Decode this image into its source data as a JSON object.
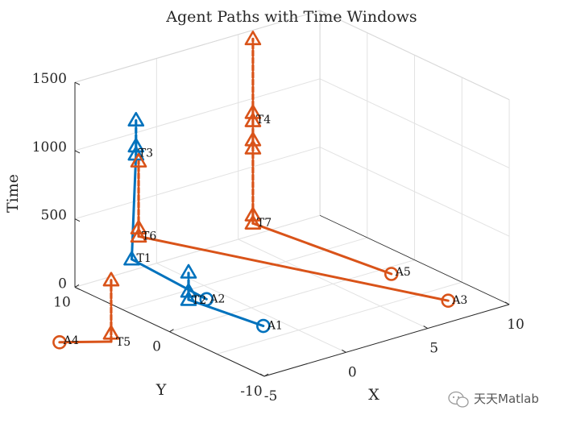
{
  "chart_data": {
    "type": "scatter3d",
    "title": "Agent Paths with Time Windows",
    "xlabel": "X",
    "ylabel": "Y",
    "zlabel": "Time",
    "xlim": [
      -5,
      10
    ],
    "ylim": [
      -10,
      10
    ],
    "zlim": [
      0,
      1500
    ],
    "xticks": [
      "-5",
      "0",
      "5",
      "10"
    ],
    "yticks": [
      "-10",
      "0",
      "10"
    ],
    "zticks": [
      "0",
      "500",
      "1000",
      "1500"
    ],
    "grid": true,
    "colors": {
      "blue": "#0072BD",
      "orange": "#D95319"
    },
    "agents": [
      {
        "label": "A1",
        "color": "blue",
        "start": [
          -1,
          -3
        ],
        "path": [
          [
            -1,
            -3,
            0
          ],
          [
            -5,
            -2,
            300
          ],
          [
            -5,
            -2,
            500
          ]
        ],
        "task": "T2"
      },
      {
        "label": "A2",
        "color": "blue",
        "start": [
          -1,
          3
        ],
        "path": [
          [
            -1,
            3,
            0
          ],
          [
            -5,
            4,
            400
          ],
          [
            -3,
            7,
            1000
          ],
          [
            -3,
            7,
            1250
          ]
        ],
        "task_points": [
          "T1",
          "T3"
        ]
      },
      {
        "label": "A3",
        "color": "orange",
        "start": [
          8,
          -7
        ],
        "path": [
          [
            8,
            -7,
            0
          ],
          [
            -4,
            5,
            500
          ],
          [
            -4,
            5,
            1050
          ]
        ],
        "task": "T6"
      },
      {
        "label": "A4",
        "color": "orange",
        "start": [
          -10,
          3
        ],
        "path": [
          [
            -10,
            3,
            0
          ],
          [
            -8,
            1,
            0
          ],
          [
            -8,
            1,
            450
          ]
        ],
        "task": "T5"
      },
      {
        "label": "A5",
        "color": "orange",
        "start": [
          8,
          -1
        ],
        "path": [
          [
            8,
            -1,
            0
          ],
          [
            3,
            5,
            350
          ],
          [
            3,
            5,
            900
          ],
          [
            3,
            5,
            1100
          ],
          [
            3,
            5,
            1700
          ]
        ],
        "task_points": [
          "T7",
          "T4"
        ]
      }
    ],
    "task_labels": [
      "T1",
      "T2",
      "T3",
      "T4",
      "T5",
      "T6",
      "T7"
    ],
    "start_labels": [
      "A1",
      "A2",
      "A3",
      "A4",
      "A5"
    ]
  },
  "watermark": "天天Matlab"
}
